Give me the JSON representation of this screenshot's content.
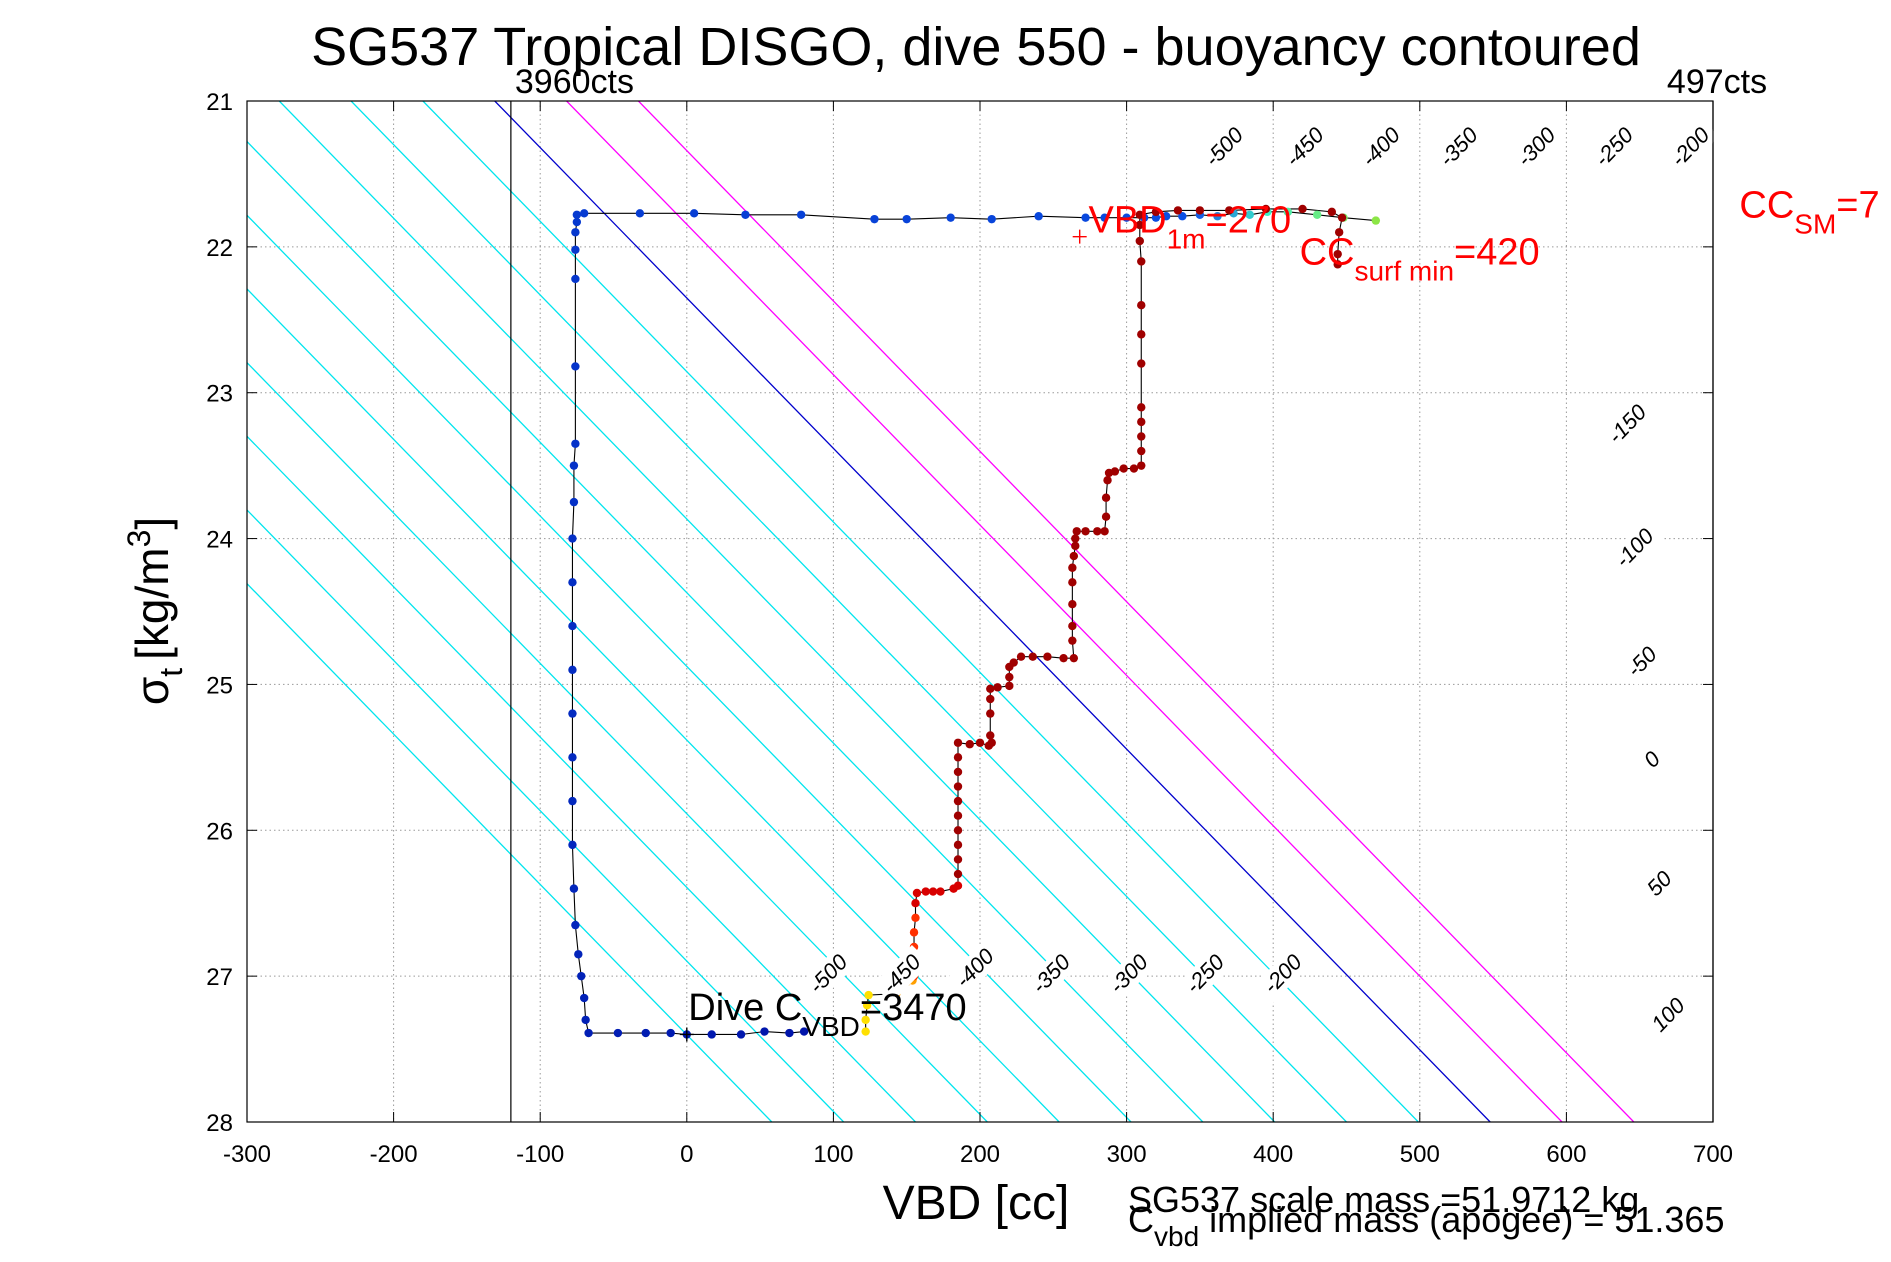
{
  "chart_data": {
    "type": "scatter",
    "title": "SG537 Tropical DISGO, dive 550 - buoyancy contoured",
    "xlabel": "VBD [cc]",
    "ylabel_main": "σ",
    "ylabel_sub": "t",
    "ylabel_units": "[kg/m",
    "ylabel_sup": "3",
    "ylabel_close": "]",
    "xlim": [
      -300,
      700
    ],
    "ylim": [
      21,
      28
    ],
    "y_reversed": true,
    "grid": true,
    "x_ticks": [
      "-300",
      "-200",
      "-100",
      "0",
      "100",
      "200",
      "300",
      "400",
      "500",
      "600",
      "700"
    ],
    "y_ticks": [
      "21",
      "22",
      "23",
      "24",
      "25",
      "26",
      "27",
      "28"
    ],
    "colors": {
      "contour_neg": "#00e5ee",
      "contour_zero": "#0000cc",
      "contour_pos": "#ff00ff",
      "annotation_red": "#ff0000",
      "trace": "#000000"
    },
    "vlines": [
      {
        "x": -120,
        "label": "3960cts"
      },
      {
        "x": 700,
        "label": "497cts"
      }
    ],
    "contour_slope_cc_per_sigma": 97,
    "contour_zero_x_at_sigma28": 548,
    "contour_spacing_cc": 49,
    "contours": [
      {
        "label": "-500"
      },
      {
        "label": "-450"
      },
      {
        "label": "-400"
      },
      {
        "label": "-350"
      },
      {
        "label": "-300"
      },
      {
        "label": "-250"
      },
      {
        "label": "-200"
      },
      {
        "label": "-150"
      },
      {
        "label": "-100"
      },
      {
        "label": "-50"
      },
      {
        "label": "0"
      },
      {
        "label": "50"
      },
      {
        "label": "100"
      }
    ],
    "upper_contour_labels": [
      {
        "label": "-500",
        "x": 370,
        "y": 21.35
      },
      {
        "label": "-450",
        "x": 425,
        "y": 21.35
      },
      {
        "label": "-400",
        "x": 477,
        "y": 21.35
      },
      {
        "label": "-350",
        "x": 530,
        "y": 21.35
      },
      {
        "label": "-300",
        "x": 583,
        "y": 21.35
      },
      {
        "label": "-250",
        "x": 636,
        "y": 21.35
      },
      {
        "label": "-200",
        "x": 688,
        "y": 21.35
      },
      {
        "label": "-150",
        "x": 645,
        "y": 23.25
      },
      {
        "label": "-100",
        "x": 650,
        "y": 24.1
      },
      {
        "label": "-50",
        "x": 655,
        "y": 24.88
      },
      {
        "label": "0",
        "x": 662,
        "y": 25.55
      },
      {
        "label": "50",
        "x": 667,
        "y": 26.4
      },
      {
        "label": "100",
        "x": 673,
        "y": 27.3
      }
    ],
    "lower_contour_labels": [
      {
        "label": "-500",
        "x": 100,
        "y": 27.02
      },
      {
        "label": "-450",
        "x": 150,
        "y": 27.02
      },
      {
        "label": "-400",
        "x": 200,
        "y": 26.98
      },
      {
        "label": "-350",
        "x": 252,
        "y": 27.02
      },
      {
        "label": "-300",
        "x": 305,
        "y": 27.02
      },
      {
        "label": "-250",
        "x": 357,
        "y": 27.02
      },
      {
        "label": "-200",
        "x": 410,
        "y": 27.02
      }
    ],
    "series": [
      {
        "color_mode": "up",
        "points": [
          [
            470,
            21.82
          ],
          [
            448,
            21.8
          ],
          [
            430,
            21.78
          ],
          [
            410,
            21.76
          ],
          [
            396,
            21.76
          ],
          [
            384,
            21.78
          ],
          [
            373,
            21.77
          ],
          [
            362,
            21.79
          ],
          [
            350,
            21.78
          ],
          [
            338,
            21.79
          ],
          [
            327,
            21.79
          ],
          [
            320,
            21.8
          ],
          [
            312,
            21.8
          ],
          [
            300,
            21.8
          ],
          [
            285,
            21.8
          ],
          [
            272,
            21.8
          ],
          [
            240,
            21.79
          ],
          [
            208,
            21.81
          ],
          [
            180,
            21.8
          ],
          [
            150,
            21.81
          ],
          [
            128,
            21.81
          ],
          [
            78,
            21.78
          ],
          [
            40,
            21.78
          ],
          [
            5,
            21.77
          ],
          [
            -32,
            21.77
          ],
          [
            -70,
            21.77
          ],
          [
            -75,
            21.78
          ],
          [
            -75,
            21.83
          ],
          [
            -76,
            21.9
          ],
          [
            -76,
            22.02
          ],
          [
            -76,
            22.22
          ],
          [
            -76,
            22.82
          ],
          [
            -76,
            23.35
          ],
          [
            -77,
            23.5
          ],
          [
            -77,
            23.75
          ],
          [
            -78,
            24.0
          ],
          [
            -78,
            24.3
          ],
          [
            -78,
            24.6
          ],
          [
            -78,
            24.9
          ],
          [
            -78,
            25.2
          ],
          [
            -78,
            25.5
          ],
          [
            -78,
            25.8
          ],
          [
            -78,
            26.1
          ],
          [
            -77,
            26.4
          ],
          [
            -76,
            26.65
          ],
          [
            -74,
            26.85
          ],
          [
            -72,
            27.0
          ],
          [
            -70,
            27.15
          ],
          [
            -69,
            27.3
          ],
          [
            -67,
            27.39
          ],
          [
            -47,
            27.39
          ],
          [
            -28,
            27.39
          ],
          [
            -11,
            27.39
          ],
          [
            0,
            27.4
          ],
          [
            17,
            27.4
          ],
          [
            37,
            27.4
          ],
          [
            53,
            27.38
          ],
          [
            70,
            27.39
          ],
          [
            80,
            27.38
          ]
        ]
      },
      {
        "color_mode": "down",
        "points": [
          [
            122,
            27.38
          ],
          [
            122,
            27.3
          ],
          [
            123,
            27.2
          ],
          [
            124,
            27.13
          ],
          [
            143,
            27.12
          ],
          [
            146,
            27.07
          ],
          [
            150,
            27.04
          ],
          [
            154,
            27.03
          ],
          [
            155,
            27.0
          ],
          [
            155,
            26.9
          ],
          [
            155,
            26.8
          ],
          [
            155,
            26.7
          ],
          [
            156,
            26.6
          ],
          [
            156,
            26.5
          ],
          [
            157,
            26.43
          ],
          [
            163,
            26.42
          ],
          [
            168,
            26.42
          ],
          [
            173,
            26.42
          ],
          [
            182,
            26.4
          ],
          [
            185,
            26.38
          ],
          [
            185,
            26.3
          ],
          [
            185,
            26.2
          ],
          [
            185,
            26.1
          ],
          [
            185,
            26.0
          ],
          [
            185,
            25.9
          ],
          [
            185,
            25.8
          ],
          [
            185,
            25.7
          ],
          [
            185,
            25.6
          ],
          [
            185,
            25.5
          ],
          [
            185,
            25.4
          ],
          [
            193,
            25.41
          ],
          [
            200,
            25.4
          ],
          [
            206,
            25.42
          ],
          [
            208,
            25.4
          ],
          [
            207,
            25.35
          ],
          [
            207,
            25.2
          ],
          [
            207,
            25.1
          ],
          [
            207,
            25.03
          ],
          [
            212,
            25.02
          ],
          [
            220,
            25.01
          ],
          [
            220,
            24.95
          ],
          [
            220,
            24.88
          ],
          [
            223,
            24.85
          ],
          [
            228,
            24.81
          ],
          [
            236,
            24.81
          ],
          [
            246,
            24.81
          ],
          [
            257,
            24.82
          ],
          [
            264,
            24.82
          ],
          [
            263,
            24.7
          ],
          [
            263,
            24.6
          ],
          [
            263,
            24.45
          ],
          [
            263,
            24.3
          ],
          [
            263,
            24.2
          ],
          [
            264,
            24.12
          ],
          [
            265,
            24.05
          ],
          [
            265,
            24.0
          ],
          [
            266,
            23.95
          ],
          [
            272,
            23.95
          ],
          [
            280,
            23.95
          ],
          [
            285,
            23.95
          ],
          [
            286,
            23.85
          ],
          [
            286,
            23.72
          ],
          [
            287,
            23.6
          ],
          [
            288,
            23.55
          ],
          [
            292,
            23.54
          ],
          [
            298,
            23.52
          ],
          [
            305,
            23.52
          ],
          [
            310,
            23.5
          ],
          [
            310,
            23.4
          ],
          [
            310,
            23.3
          ],
          [
            310,
            23.2
          ],
          [
            310,
            23.1
          ],
          [
            310,
            22.8
          ],
          [
            310,
            22.6
          ],
          [
            310,
            22.4
          ],
          [
            310,
            22.1
          ],
          [
            309,
            21.96
          ],
          [
            309,
            21.85
          ],
          [
            309,
            21.78
          ],
          [
            320,
            21.76
          ],
          [
            335,
            21.75
          ],
          [
            350,
            21.75
          ],
          [
            370,
            21.75
          ],
          [
            395,
            21.74
          ],
          [
            420,
            21.74
          ],
          [
            440,
            21.76
          ],
          [
            447,
            21.8
          ],
          [
            445,
            21.9
          ],
          [
            444,
            22.05
          ],
          [
            444,
            22.12
          ]
        ]
      }
    ],
    "annotations": [
      {
        "main": "VBD",
        "sub": "1m",
        "tail": "=270",
        "x": 274,
        "y": 21.9,
        "color": "red",
        "marker_x": 268,
        "marker_y": 21.93
      },
      {
        "main": "CC",
        "sub": "surf min",
        "tail": "=420",
        "x": 418,
        "y": 22.12,
        "color": "red"
      },
      {
        "main": "CC",
        "sub": "SM",
        "tail": "=7",
        "x": 718,
        "y": 21.8,
        "color": "red"
      },
      {
        "main": "Dive C",
        "sub": "VBD",
        "tail": "=3470",
        "x": 1,
        "y": 27.3,
        "color": "black",
        "marker_x": 0,
        "marker_y": 27.4
      }
    ],
    "footer_line1": "SG537 scale mass =51.9712 kg",
    "footer_line2_main": "C",
    "footer_line2_sub": "vbd",
    "footer_line2_tail": " implied mass (apogee) = 51.365"
  }
}
